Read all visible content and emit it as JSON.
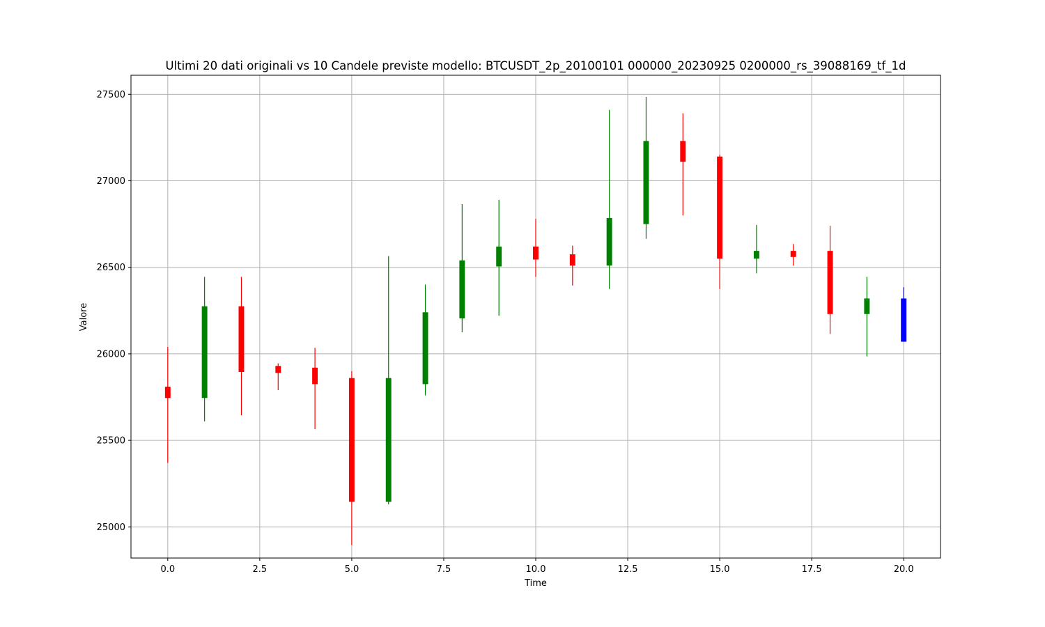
{
  "chart_data": {
    "type": "candlestick",
    "title": "Ultimi 20 dati originali vs 10 Candele previste modello: BTCUSDT_2p_20100101 000000_20230925 0200000_rs_39088169_tf_1d",
    "xlabel": "Time",
    "ylabel": "Valore",
    "xlim": [
      -1.0,
      21.0
    ],
    "ylim": [
      24820,
      27610
    ],
    "xticks": [
      0.0,
      2.5,
      5.0,
      7.5,
      10.0,
      12.5,
      15.0,
      17.5,
      20.0
    ],
    "xtick_labels": [
      "0.0",
      "2.5",
      "5.0",
      "7.5",
      "10.0",
      "12.5",
      "15.0",
      "17.5",
      "20.0"
    ],
    "yticks": [
      25000,
      25500,
      26000,
      26500,
      27000,
      27500
    ],
    "ytick_labels": [
      "25000",
      "25500",
      "26000",
      "26500",
      "27000",
      "27500"
    ],
    "grid": true,
    "colors": {
      "up": "#008000",
      "down": "#ff0000",
      "predicted": "#0000ff",
      "grid": "#b0b0b0"
    },
    "candles": [
      {
        "t": 0,
        "open": 25810,
        "high": 26040,
        "low": 25370,
        "close": 25745,
        "kind": "down"
      },
      {
        "t": 1,
        "open": 25745,
        "high": 26445,
        "low": 25610,
        "close": 26275,
        "kind": "up"
      },
      {
        "t": 2,
        "open": 26275,
        "high": 26445,
        "low": 25645,
        "close": 25895,
        "kind": "down"
      },
      {
        "t": 3,
        "open": 25930,
        "high": 25945,
        "low": 25790,
        "close": 25890,
        "kind": "down"
      },
      {
        "t": 4,
        "open": 25920,
        "high": 26035,
        "low": 25565,
        "close": 25825,
        "kind": "down"
      },
      {
        "t": 5,
        "open": 25860,
        "high": 25900,
        "low": 24895,
        "close": 25145,
        "kind": "down"
      },
      {
        "t": 6,
        "open": 25145,
        "high": 26565,
        "low": 25130,
        "close": 25860,
        "kind": "up"
      },
      {
        "t": 7,
        "open": 25825,
        "high": 26400,
        "low": 25760,
        "close": 26240,
        "kind": "up"
      },
      {
        "t": 8,
        "open": 26205,
        "high": 26865,
        "low": 26125,
        "close": 26540,
        "kind": "up"
      },
      {
        "t": 9,
        "open": 26505,
        "high": 26890,
        "low": 26220,
        "close": 26620,
        "kind": "up"
      },
      {
        "t": 10,
        "open": 26620,
        "high": 26780,
        "low": 26445,
        "close": 26545,
        "kind": "down"
      },
      {
        "t": 11,
        "open": 26575,
        "high": 26625,
        "low": 26395,
        "close": 26510,
        "kind": "down"
      },
      {
        "t": 12,
        "open": 26510,
        "high": 27410,
        "low": 26375,
        "close": 26785,
        "kind": "up"
      },
      {
        "t": 13,
        "open": 26750,
        "high": 27485,
        "low": 26665,
        "close": 27230,
        "kind": "up"
      },
      {
        "t": 14,
        "open": 27230,
        "high": 27390,
        "low": 26800,
        "close": 27110,
        "kind": "down"
      },
      {
        "t": 15,
        "open": 27140,
        "high": 27150,
        "low": 26375,
        "close": 26550,
        "kind": "down"
      },
      {
        "t": 16,
        "open": 26550,
        "high": 26745,
        "low": 26465,
        "close": 26595,
        "kind": "up"
      },
      {
        "t": 17,
        "open": 26595,
        "high": 26635,
        "low": 26510,
        "close": 26560,
        "kind": "down"
      },
      {
        "t": 18,
        "open": 26595,
        "high": 26740,
        "low": 26115,
        "close": 26230,
        "kind": "down"
      },
      {
        "t": 19,
        "open": 26230,
        "high": 26445,
        "low": 25985,
        "close": 26320,
        "kind": "up"
      },
      {
        "t": 20,
        "open": 26320,
        "high": 26385,
        "low": 26070,
        "close": 26070,
        "kind": "predicted"
      }
    ]
  }
}
